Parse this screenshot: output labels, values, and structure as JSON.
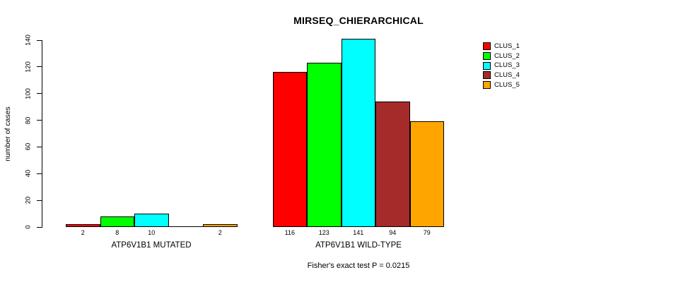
{
  "title": "MIRSEQ_CHIERARCHICAL",
  "footer": {
    "stat_test": "Fisher's exact test P = 0.0215"
  },
  "y_axis": {
    "label": "number of cases"
  },
  "chart_data": {
    "type": "bar",
    "title": "MIRSEQ_CHIERARCHICAL",
    "xlabel": "",
    "ylabel": "number of cases",
    "ylim": [
      0,
      140
    ],
    "yticks": [
      0,
      20,
      40,
      60,
      80,
      100,
      120,
      140
    ],
    "grid": false,
    "legend_position": "top-right",
    "annotation": "Fisher's exact test P = 0.0215",
    "categories": [
      "ATP6V1B1 MUTATED",
      "ATP6V1B1 WILD-TYPE"
    ],
    "series": [
      {
        "name": "CLUS_1",
        "color": "#FF0000",
        "values": [
          2,
          116
        ]
      },
      {
        "name": "CLUS_2",
        "color": "#00FF00",
        "values": [
          8,
          123
        ]
      },
      {
        "name": "CLUS_3",
        "color": "#00FFFF",
        "values": [
          10,
          141
        ]
      },
      {
        "name": "CLUS_4",
        "color": "#A52A2A",
        "values": [
          0,
          94
        ]
      },
      {
        "name": "CLUS_5",
        "color": "#FFA500",
        "values": [
          2,
          79
        ]
      }
    ],
    "bar_value_labels": [
      [
        "2",
        "8",
        "10",
        "",
        "2"
      ],
      [
        "116",
        "123",
        "141",
        "94",
        "79"
      ]
    ]
  }
}
